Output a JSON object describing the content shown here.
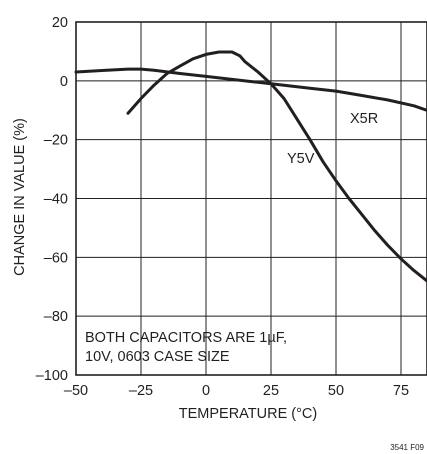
{
  "chart_data": {
    "type": "line",
    "xlabel": "TEMPERATURE (°C)",
    "ylabel": "CHANGE IN VALUE (%)",
    "xlim": [
      -50,
      85
    ],
    "ylim": [
      -100,
      20
    ],
    "x_ticks": [
      -50,
      -25,
      0,
      25,
      50,
      75
    ],
    "x_tick_labels": [
      "–50",
      "–25",
      "0",
      "25",
      "50",
      "75"
    ],
    "y_ticks": [
      20,
      0,
      -20,
      -40,
      -60,
      -80,
      -100
    ],
    "y_tick_labels": [
      "20",
      "0",
      "–20",
      "–40",
      "–60",
      "–80",
      "–100"
    ],
    "grid": true,
    "series": [
      {
        "name": "X5R",
        "x": [
          -50,
          -40,
          -30,
          -25,
          -20,
          -10,
          0,
          10,
          20,
          25,
          30,
          40,
          50,
          60,
          70,
          80,
          85
        ],
        "y": [
          3,
          3.5,
          4,
          4,
          3.6,
          2.5,
          1.5,
          0.5,
          -0.5,
          -1,
          -1.5,
          -2.5,
          -3.5,
          -5,
          -6.5,
          -8.5,
          -10
        ]
      },
      {
        "name": "Y5V",
        "x": [
          -30,
          -25,
          -20,
          -15,
          -10,
          -5,
          0,
          5,
          10,
          13,
          15,
          20,
          25,
          30,
          35,
          40,
          45,
          50,
          55,
          60,
          65,
          70,
          75,
          80,
          85
        ],
        "y": [
          -11,
          -6,
          -1.5,
          2.5,
          5,
          7.5,
          9,
          9.8,
          9.8,
          8.5,
          6.5,
          3,
          -1,
          -6,
          -13,
          -20,
          -27.5,
          -34,
          -40,
          -45.5,
          -51,
          -56,
          -60.5,
          -64.5,
          -68
        ]
      }
    ],
    "annotations": [
      "BOTH CAPACITORS ARE 1µF,",
      "10V, 0603 CASE SIZE"
    ]
  },
  "figure_id": "3541 F09"
}
